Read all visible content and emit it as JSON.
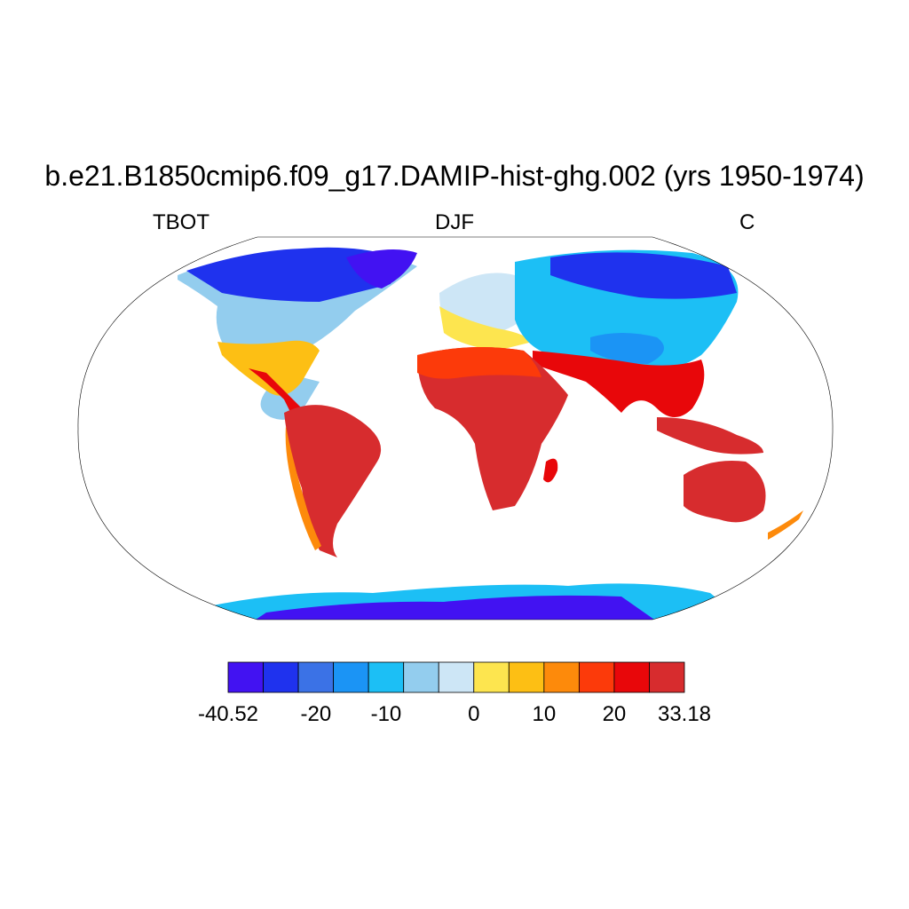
{
  "title": "b.e21.B1850cmip6.f09_g17.DAMIP-hist-ghg.002 (yrs 1950-1974)",
  "left_label": "TBOT",
  "center_label": "DJF",
  "right_label": "C",
  "colorbar": {
    "colors": [
      "#4212f2",
      "#1f32ee",
      "#3b72e6",
      "#1b94f5",
      "#1cbff5",
      "#93cdee",
      "#cde6f6",
      "#fde54f",
      "#fdbf14",
      "#fd8a0b",
      "#fc3a0a",
      "#e8070a",
      "#d72c2e"
    ],
    "labels": [
      "-40.52",
      "-20",
      "-10",
      "0",
      "10",
      "20",
      "33.18"
    ],
    "label_positions": [
      0,
      2.5,
      4.5,
      7,
      9,
      11,
      13
    ]
  },
  "map": {
    "projection": "Robinson",
    "variable": "TBOT",
    "units": "C",
    "min": -40.52,
    "max": 33.18
  }
}
